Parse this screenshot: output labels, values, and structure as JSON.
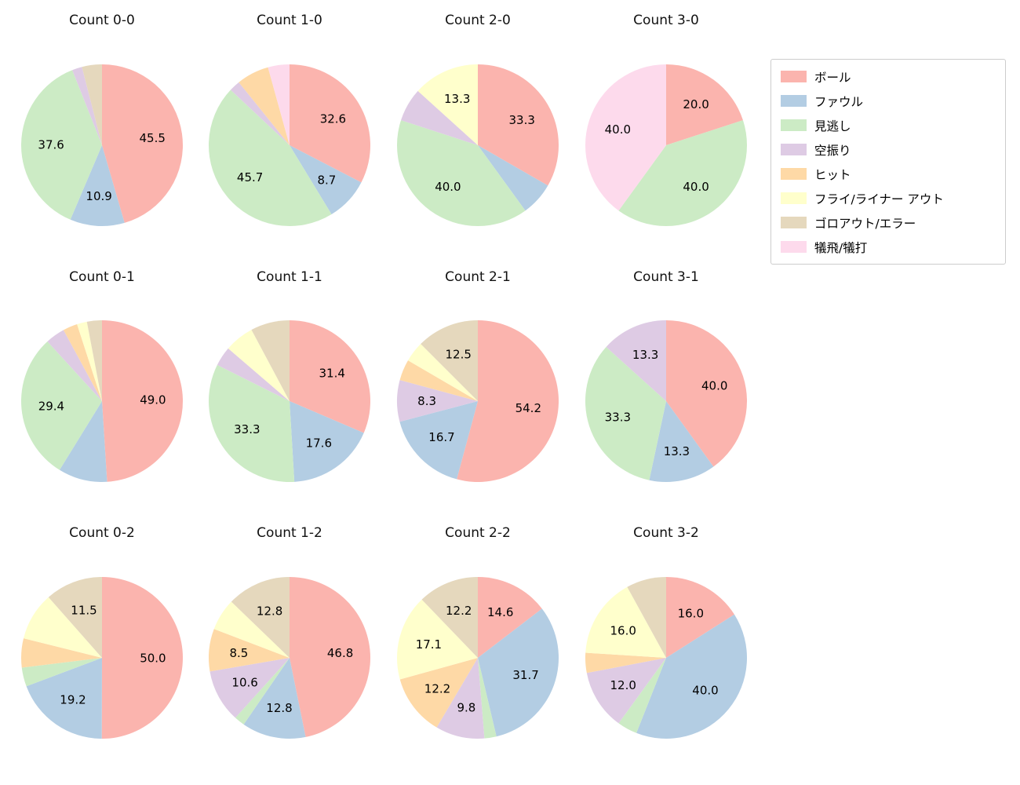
{
  "figure": {
    "background": "#ffffff"
  },
  "palette": {
    "ボール": "#fbb4ae",
    "ファウル": "#b3cde3",
    "見逃し": "#ccebc5",
    "空振り": "#decbe4",
    "ヒット": "#fed9a6",
    "フライ/ライナー アウト": "#ffffcc",
    "ゴロアウト/エラー": "#e5d8bd",
    "犠飛/犠打": "#fddaec"
  },
  "legend": {
    "items": [
      {
        "label": "ボール",
        "color": "#fbb4ae"
      },
      {
        "label": "ファウル",
        "color": "#b3cde3"
      },
      {
        "label": "見逃し",
        "color": "#ccebc5"
      },
      {
        "label": "空振り",
        "color": "#decbe4"
      },
      {
        "label": "ヒット",
        "color": "#fed9a6"
      },
      {
        "label": "フライ/ライナー アウト",
        "color": "#ffffcc"
      },
      {
        "label": "ゴロアウト/エラー",
        "color": "#e5d8bd"
      },
      {
        "label": "犠飛/犠打",
        "color": "#fddaec"
      }
    ]
  },
  "chart_data": [
    {
      "type": "pie",
      "title": "Count 0-0",
      "slices": [
        {
          "category": "ボール",
          "value": 45.5,
          "text": "45.5"
        },
        {
          "category": "ファウル",
          "value": 10.9,
          "text": "10.9"
        },
        {
          "category": "見逃し",
          "value": 37.6,
          "text": "37.6"
        },
        {
          "category": "空振り",
          "value": 2.0,
          "text": ""
        },
        {
          "category": "ゴロアウト/エラー",
          "value": 4.0,
          "text": ""
        }
      ]
    },
    {
      "type": "pie",
      "title": "Count 1-0",
      "slices": [
        {
          "category": "ボール",
          "value": 32.6,
          "text": "32.6"
        },
        {
          "category": "ファウル",
          "value": 8.7,
          "text": "8.7"
        },
        {
          "category": "見逃し",
          "value": 45.7,
          "text": "45.7"
        },
        {
          "category": "空振り",
          "value": 2.2,
          "text": ""
        },
        {
          "category": "ヒット",
          "value": 6.5,
          "text": ""
        },
        {
          "category": "犠飛/犠打",
          "value": 4.3,
          "text": ""
        }
      ]
    },
    {
      "type": "pie",
      "title": "Count 2-0",
      "slices": [
        {
          "category": "ボール",
          "value": 33.3,
          "text": "33.3"
        },
        {
          "category": "ファウル",
          "value": 6.7,
          "text": ""
        },
        {
          "category": "見逃し",
          "value": 40.0,
          "text": "40.0"
        },
        {
          "category": "空振り",
          "value": 6.7,
          "text": ""
        },
        {
          "category": "フライ/ライナー アウト",
          "value": 13.3,
          "text": "13.3"
        }
      ]
    },
    {
      "type": "pie",
      "title": "Count 3-0",
      "slices": [
        {
          "category": "ボール",
          "value": 20.0,
          "text": "20.0"
        },
        {
          "category": "見逃し",
          "value": 40.0,
          "text": "40.0"
        },
        {
          "category": "犠飛/犠打",
          "value": 40.0,
          "text": "40.0"
        }
      ]
    },
    {
      "type": "pie",
      "title": "Count 0-1",
      "slices": [
        {
          "category": "ボール",
          "value": 49.0,
          "text": "49.0"
        },
        {
          "category": "ファウル",
          "value": 9.8,
          "text": ""
        },
        {
          "category": "見逃し",
          "value": 29.4,
          "text": "29.4"
        },
        {
          "category": "空振り",
          "value": 3.9,
          "text": ""
        },
        {
          "category": "ヒット",
          "value": 2.9,
          "text": ""
        },
        {
          "category": "フライ/ライナー アウト",
          "value": 2.0,
          "text": ""
        },
        {
          "category": "ゴロアウト/エラー",
          "value": 3.0,
          "text": ""
        }
      ]
    },
    {
      "type": "pie",
      "title": "Count 1-1",
      "slices": [
        {
          "category": "ボール",
          "value": 31.4,
          "text": "31.4"
        },
        {
          "category": "ファウル",
          "value": 17.6,
          "text": "17.6"
        },
        {
          "category": "見逃し",
          "value": 33.3,
          "text": "33.3"
        },
        {
          "category": "空振り",
          "value": 3.9,
          "text": ""
        },
        {
          "category": "フライ/ライナー アウト",
          "value": 5.9,
          "text": ""
        },
        {
          "category": "ゴロアウト/エラー",
          "value": 7.8,
          "text": ""
        }
      ]
    },
    {
      "type": "pie",
      "title": "Count 2-1",
      "slices": [
        {
          "category": "ボール",
          "value": 54.2,
          "text": "54.2"
        },
        {
          "category": "ファウル",
          "value": 16.7,
          "text": "16.7"
        },
        {
          "category": "空振り",
          "value": 8.3,
          "text": "8.3"
        },
        {
          "category": "ヒット",
          "value": 4.2,
          "text": ""
        },
        {
          "category": "フライ/ライナー アウト",
          "value": 4.1,
          "text": ""
        },
        {
          "category": "ゴロアウト/エラー",
          "value": 12.5,
          "text": "12.5"
        }
      ]
    },
    {
      "type": "pie",
      "title": "Count 3-1",
      "slices": [
        {
          "category": "ボール",
          "value": 40.0,
          "text": "40.0"
        },
        {
          "category": "ファウル",
          "value": 13.3,
          "text": "13.3"
        },
        {
          "category": "見逃し",
          "value": 33.3,
          "text": "33.3"
        },
        {
          "category": "空振り",
          "value": 13.3,
          "text": "13.3"
        }
      ]
    },
    {
      "type": "pie",
      "title": "Count 0-2",
      "slices": [
        {
          "category": "ボール",
          "value": 50.0,
          "text": "50.0"
        },
        {
          "category": "ファウル",
          "value": 19.2,
          "text": "19.2"
        },
        {
          "category": "見逃し",
          "value": 3.8,
          "text": ""
        },
        {
          "category": "ヒット",
          "value": 5.8,
          "text": ""
        },
        {
          "category": "フライ/ライナー アウト",
          "value": 9.6,
          "text": ""
        },
        {
          "category": "ゴロアウト/エラー",
          "value": 11.5,
          "text": "11.5"
        }
      ]
    },
    {
      "type": "pie",
      "title": "Count 1-2",
      "slices": [
        {
          "category": "ボール",
          "value": 46.8,
          "text": "46.8"
        },
        {
          "category": "ファウル",
          "value": 12.8,
          "text": "12.8"
        },
        {
          "category": "見逃し",
          "value": 2.1,
          "text": ""
        },
        {
          "category": "空振り",
          "value": 10.6,
          "text": "10.6"
        },
        {
          "category": "ヒット",
          "value": 8.5,
          "text": "8.5"
        },
        {
          "category": "フライ/ライナー アウト",
          "value": 6.4,
          "text": ""
        },
        {
          "category": "ゴロアウト/エラー",
          "value": 12.8,
          "text": "12.8"
        }
      ]
    },
    {
      "type": "pie",
      "title": "Count 2-2",
      "slices": [
        {
          "category": "ボール",
          "value": 14.6,
          "text": "14.6"
        },
        {
          "category": "ファウル",
          "value": 31.7,
          "text": "31.7"
        },
        {
          "category": "見逃し",
          "value": 2.4,
          "text": ""
        },
        {
          "category": "空振り",
          "value": 9.8,
          "text": "9.8"
        },
        {
          "category": "ヒット",
          "value": 12.2,
          "text": "12.2"
        },
        {
          "category": "フライ/ライナー アウト",
          "value": 17.1,
          "text": "17.1"
        },
        {
          "category": "ゴロアウト/エラー",
          "value": 12.2,
          "text": "12.2"
        }
      ]
    },
    {
      "type": "pie",
      "title": "Count 3-2",
      "slices": [
        {
          "category": "ボール",
          "value": 16.0,
          "text": "16.0"
        },
        {
          "category": "ファウル",
          "value": 40.0,
          "text": "40.0"
        },
        {
          "category": "見逃し",
          "value": 4.0,
          "text": ""
        },
        {
          "category": "空振り",
          "value": 12.0,
          "text": "12.0"
        },
        {
          "category": "ヒット",
          "value": 4.0,
          "text": ""
        },
        {
          "category": "フライ/ライナー アウト",
          "value": 16.0,
          "text": "16.0"
        },
        {
          "category": "ゴロアウト/エラー",
          "value": 8.0,
          "text": ""
        }
      ]
    }
  ]
}
